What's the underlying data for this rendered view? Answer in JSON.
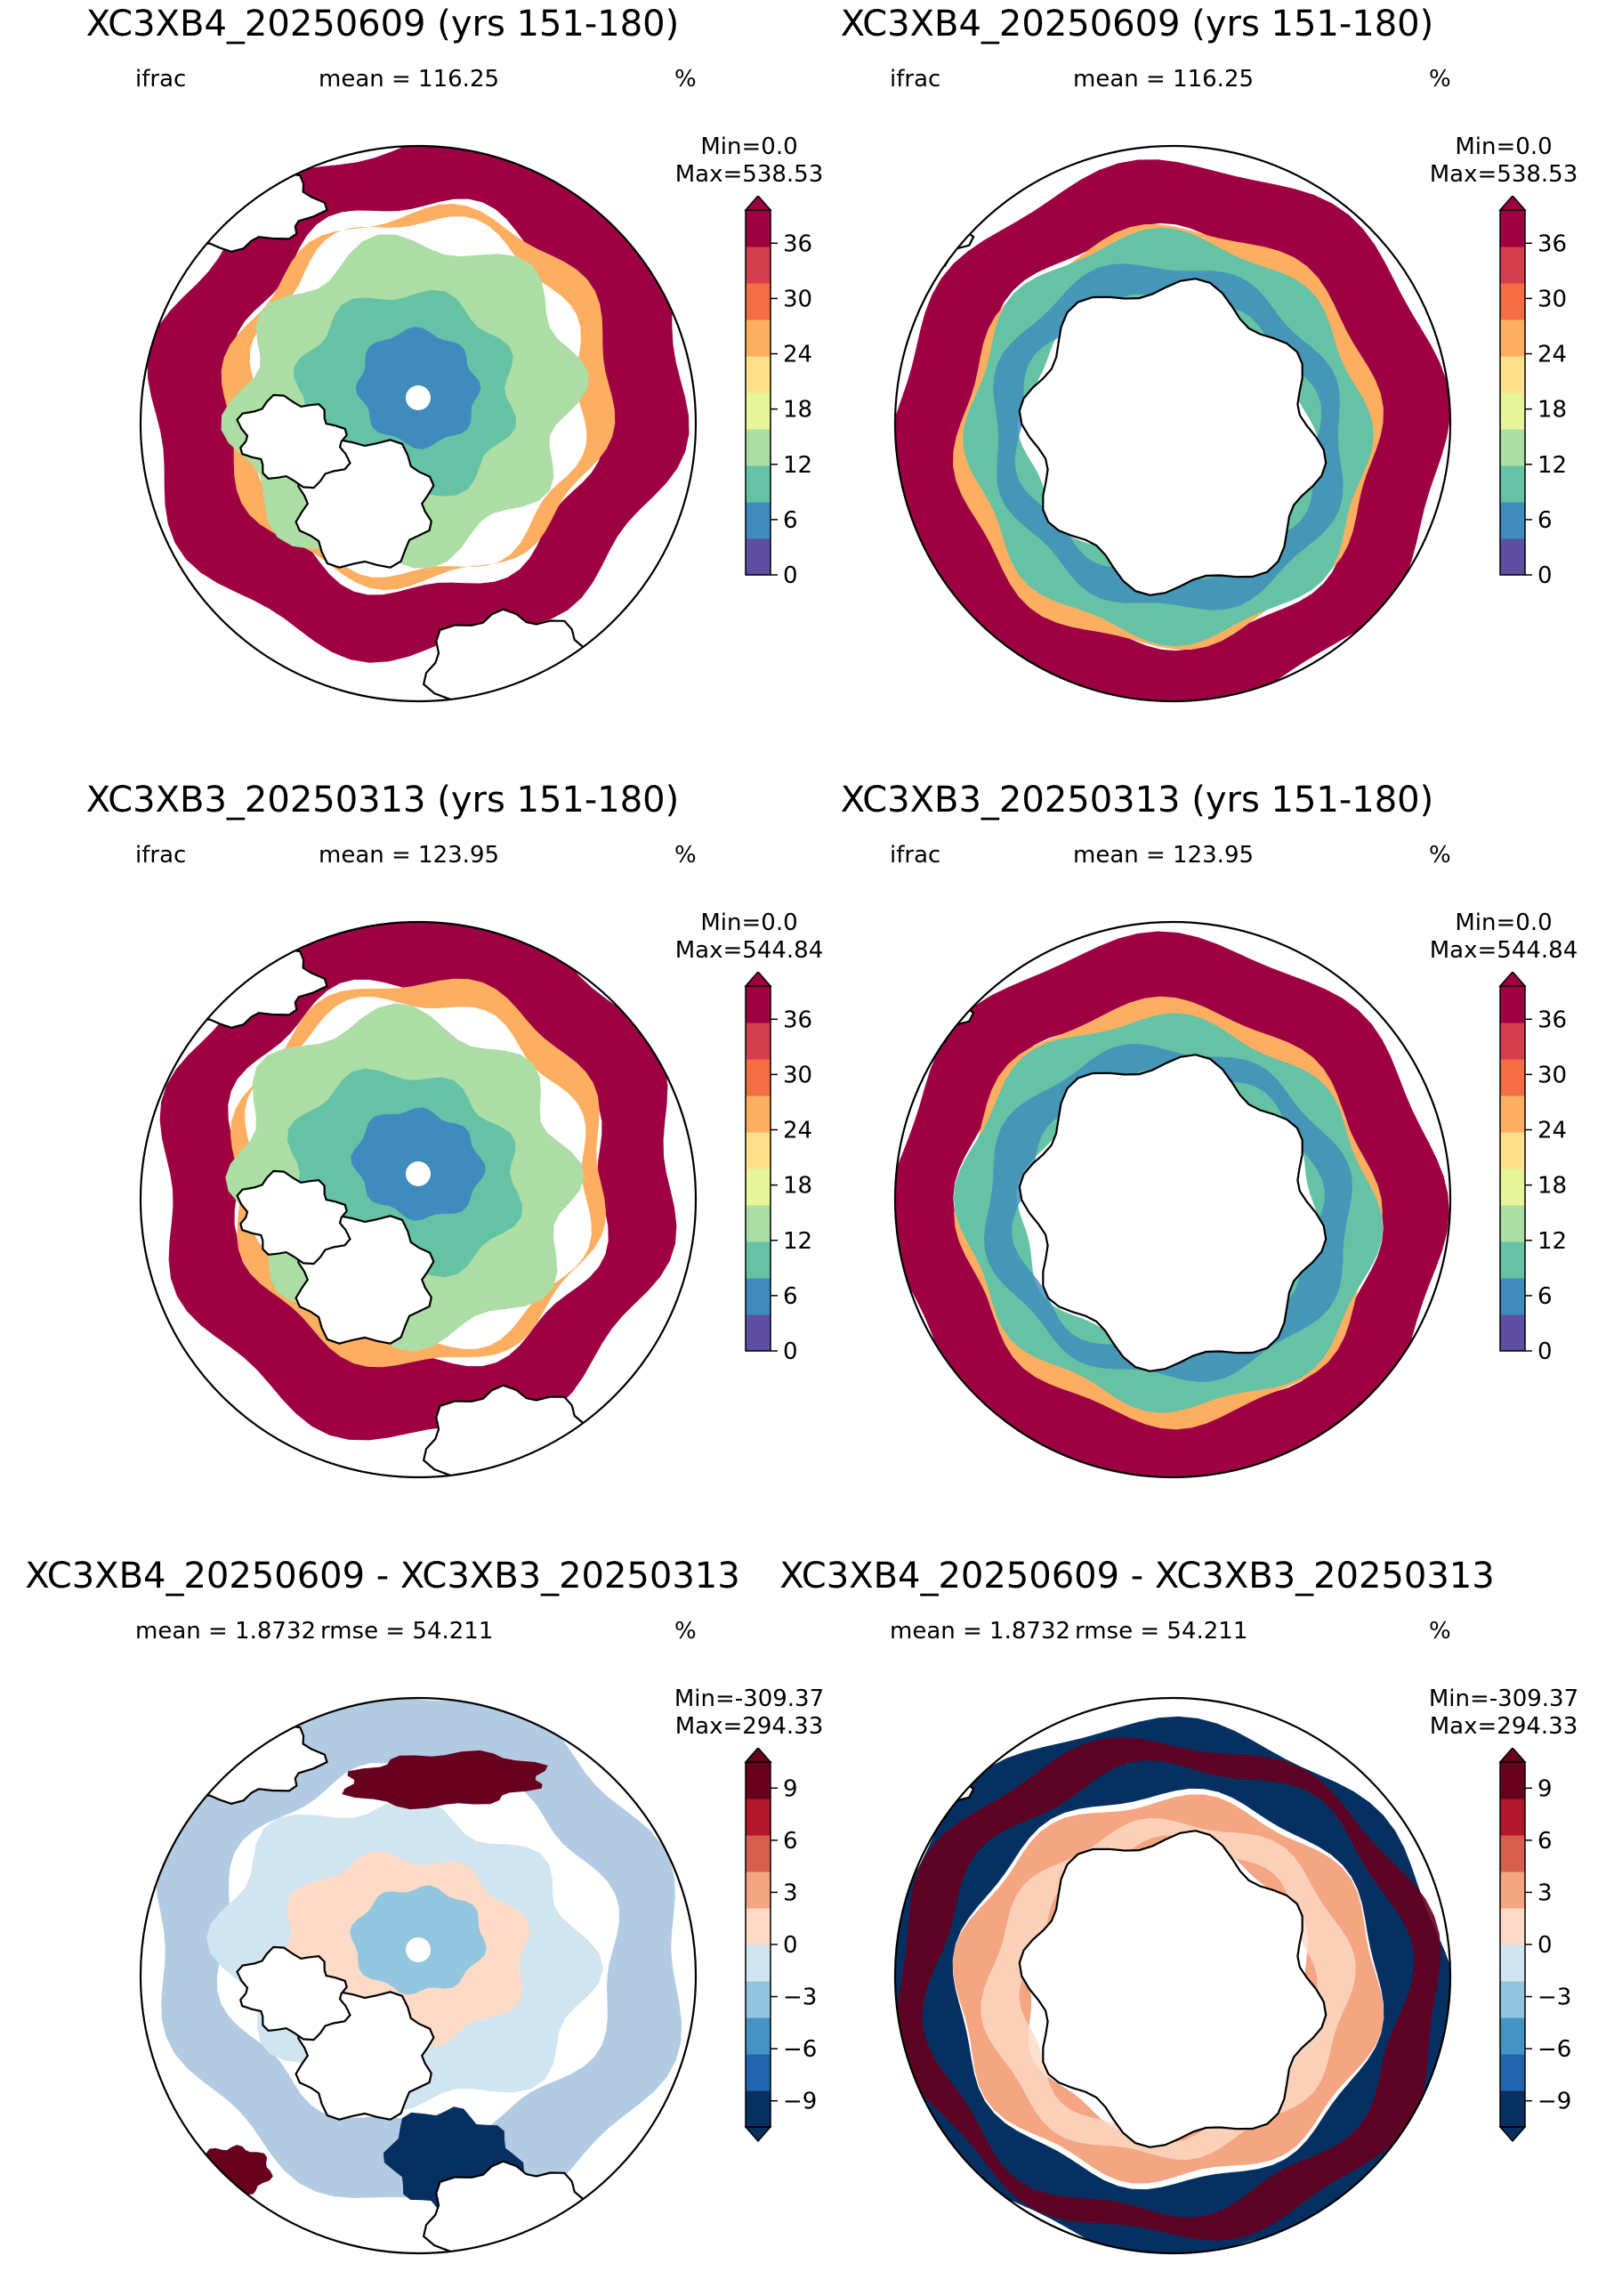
{
  "panels": [
    {
      "title": "XC3XB4_20250609 (yrs 151-180)",
      "variable": "ifrac",
      "mean": "mean = 116.25",
      "unit": "%",
      "min": "Min=0.0",
      "max": "Max=538.53",
      "hemisphere": "north",
      "colormap": "Spectral_r",
      "colorbar_ticks": [
        "0",
        "6",
        "12",
        "18",
        "24",
        "30",
        "36"
      ]
    },
    {
      "title": "XC3XB4_20250609 (yrs 151-180)",
      "variable": "ifrac",
      "mean": "mean = 116.25",
      "unit": "%",
      "min": "Min=0.0",
      "max": "Max=538.53",
      "hemisphere": "south",
      "colormap": "Spectral_r",
      "colorbar_ticks": [
        "0",
        "6",
        "12",
        "18",
        "24",
        "30",
        "36"
      ]
    },
    {
      "title": "XC3XB3_20250313 (yrs 151-180)",
      "variable": "ifrac",
      "mean": "mean = 123.95",
      "unit": "%",
      "min": "Min=0.0",
      "max": "Max=544.84",
      "hemisphere": "north",
      "colormap": "Spectral_r",
      "colorbar_ticks": [
        "0",
        "6",
        "12",
        "18",
        "24",
        "30",
        "36"
      ]
    },
    {
      "title": "XC3XB3_20250313 (yrs 151-180)",
      "variable": "ifrac",
      "mean": "mean = 123.95",
      "unit": "%",
      "min": "Min=0.0",
      "max": "Max=544.84",
      "hemisphere": "south",
      "colormap": "Spectral_r",
      "colorbar_ticks": [
        "0",
        "6",
        "12",
        "18",
        "24",
        "30",
        "36"
      ]
    },
    {
      "title": "XC3XB4_20250609 - XC3XB3_20250313",
      "variable": "",
      "mean": "mean = 1.8732",
      "rmse": "rmse = 54.211",
      "unit": "%",
      "min": "Min=-309.37",
      "max": "Max=294.33",
      "hemisphere": "north",
      "colormap": "RdBu_r",
      "colorbar_ticks": [
        "−9",
        "−6",
        "−3",
        "0",
        "3",
        "6",
        "9"
      ]
    },
    {
      "title": "XC3XB4_20250609 - XC3XB3_20250313",
      "variable": "",
      "mean": "mean = 1.8732",
      "rmse": "rmse = 54.211",
      "unit": "%",
      "min": "Min=-309.37",
      "max": "Max=294.33",
      "hemisphere": "south",
      "colormap": "RdBu_r",
      "colorbar_ticks": [
        "−9",
        "−6",
        "−3",
        "0",
        "3",
        "6",
        "9"
      ]
    }
  ],
  "colors": {
    "spectral_r": [
      "#5e4fa2",
      "#3f8bbd",
      "#66c2a5",
      "#abdda4",
      "#e6f598",
      "#fee08b",
      "#fdae61",
      "#f46d43",
      "#d53e4f",
      "#9e0142"
    ],
    "rdbu_r": [
      "#053061",
      "#2166ac",
      "#4393c3",
      "#92c5de",
      "#d1e5f0",
      "#fddbc7",
      "#f4a582",
      "#d6604d",
      "#b2182b",
      "#67001f"
    ]
  }
}
